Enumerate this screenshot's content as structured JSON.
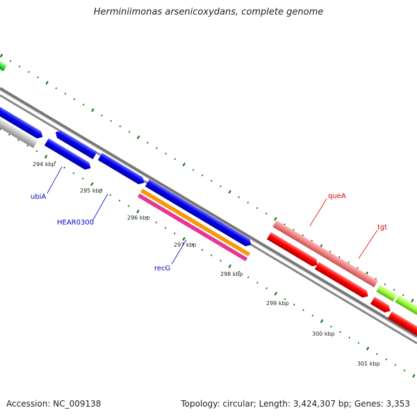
{
  "title": "Herminiimonas arsenicoxydans, complete genome",
  "footer": {
    "accession": "Accession: NC_009138",
    "summary": "Topology: circular; Length: 3,424,307 bp; Genes: 3,353"
  },
  "map": {
    "ticks": [
      "294 kbp",
      "295 kbp",
      "296 kbp",
      "297 kbp",
      "298 kbp",
      "299 kbp",
      "300 kbp",
      "301 kbp"
    ],
    "gene_labels": [
      "ubiA",
      "HEAR0300",
      "recG",
      "queA",
      "tgt"
    ],
    "colors": {
      "blue": "#0000ee",
      "grey": "#b8b8b8",
      "red": "#ff0000",
      "pink": "#f08080",
      "orange": "#ff9900",
      "magenta": "#ee3399",
      "lime": "#99ff33",
      "green": "#33dd33",
      "tick": "#117711",
      "label_blue": "#0000cc",
      "label_red": "#dd0000"
    }
  }
}
